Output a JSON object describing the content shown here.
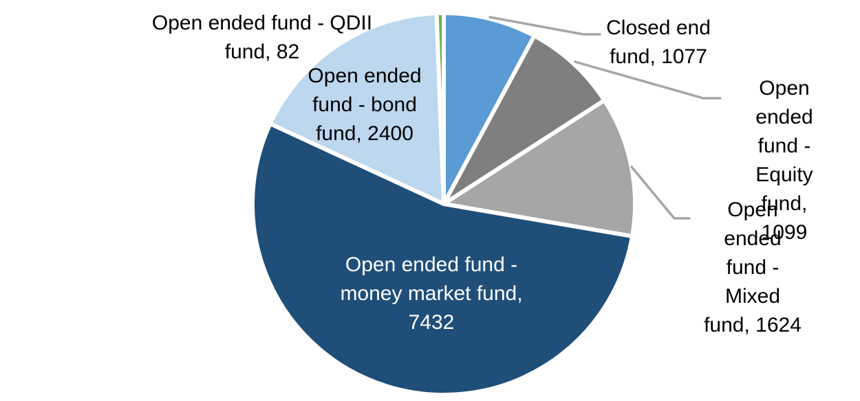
{
  "chart": {
    "background_color": "#FFFFFF",
    "leader_line_color": "#A6A6A6",
    "slice_border_color": "#FFFFFF"
  },
  "chart_data": {
    "type": "pie",
    "title": "",
    "legend_position": "none",
    "direction": "clockwise",
    "start_angle_deg": 0,
    "total": 13714,
    "data_labels": "category name and value",
    "slices": [
      {
        "key": "closed_end",
        "label": "Closed end fund",
        "value": 1077,
        "color": "#5B9BD5"
      },
      {
        "key": "equity",
        "label": "Open ended fund - Equity fund",
        "value": 1099,
        "color": "#7F7F7F"
      },
      {
        "key": "mixed",
        "label": "Open ended fund - Mixed fund",
        "value": 1624,
        "color": "#A6A6A6"
      },
      {
        "key": "money_market",
        "label": "Open ended fund - money market fund",
        "value": 7432,
        "color": "#1F4E79"
      },
      {
        "key": "bond",
        "label": "Open ended fund - bond fund",
        "value": 2400,
        "color": "#BDD7EE"
      },
      {
        "key": "qdii",
        "label": "Open ended fund - QDII fund",
        "value": 82,
        "color": "#70AD47"
      }
    ]
  },
  "labels": {
    "qdii": "Open ended fund - QDII\nfund, 82",
    "bond": "Open ended\nfund - bond\nfund, 2400",
    "closed_end": "Closed end\nfund, 1077",
    "equity": "Open ended\nfund - Equity\nfund, 1099",
    "mixed": "Open ended\nfund - Mixed\nfund, 1624",
    "money_market": "Open ended fund -\nmoney market fund,\n7432"
  }
}
